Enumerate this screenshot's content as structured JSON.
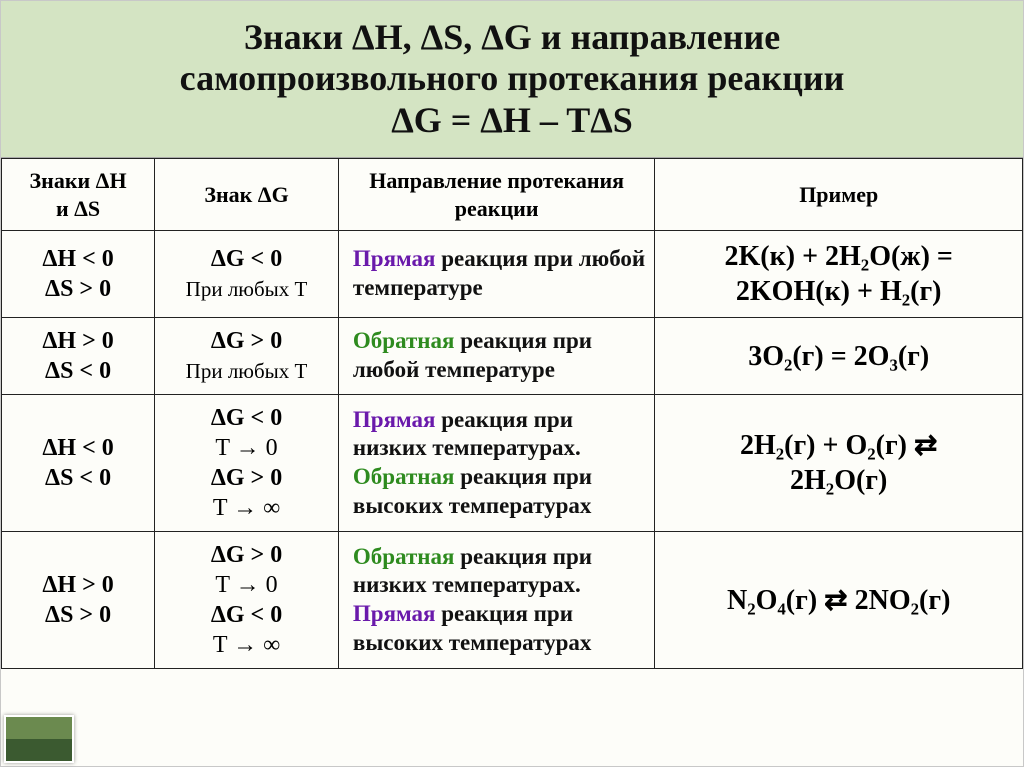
{
  "title": {
    "line1": "Знаки ΔH, ΔS, ΔG и направление",
    "line2": "самопроизвольного протекания реакции",
    "line3": "ΔG = ΔH – TΔS"
  },
  "headers": {
    "c1a": "Знаки ΔH",
    "c1b": "и ΔS",
    "c2": "Знак ΔG",
    "c3a": "Направление протекания",
    "c3b": "реакции",
    "c4": "Пример"
  },
  "rows": [
    {
      "signs_l1": "ΔH < 0",
      "signs_l2": "ΔS > 0",
      "g_l1": "ΔG < 0",
      "g_l2": "При любых T",
      "dir": [
        {
          "class": "forward",
          "text": "Прямая "
        },
        {
          "class": "plain",
          "text": "реакция при любой температуре"
        }
      ],
      "example_l1": "2K(к) + 2H₂O(ж) =",
      "example_l2": "2KOH(к) + H₂(г)"
    },
    {
      "signs_l1": "ΔH > 0",
      "signs_l2": "ΔS < 0",
      "g_l1": "ΔG > 0",
      "g_l2": "При любых T",
      "dir": [
        {
          "class": "reverse",
          "text": "Обратная "
        },
        {
          "class": "plain",
          "text": "реакция при любой температуре"
        }
      ],
      "example_l1": "3O₂(г)  = 2O₃(г)",
      "example_l2": ""
    },
    {
      "signs_l1": "ΔH < 0",
      "signs_l2": "ΔS < 0",
      "g_l1": "ΔG < 0",
      "g_l2": "T → 0",
      "g_l3": "ΔG > 0",
      "g_l4": "T → ∞",
      "dir": [
        {
          "class": "forward",
          "text": "Прямая "
        },
        {
          "class": "plain",
          "text": "реакция при низких температурах."
        },
        {
          "class": "br",
          "text": ""
        },
        {
          "class": "reverse",
          "text": "Обратная "
        },
        {
          "class": "plain",
          "text": "реакция при высоких температурах"
        }
      ],
      "example_l1": "2H₂(г) + O₂(г) ⇄",
      "example_l2": "2H₂O(г)"
    },
    {
      "signs_l1": "ΔH > 0",
      "signs_l2": "ΔS > 0",
      "g_l1": "ΔG > 0",
      "g_l2": "T → 0",
      "g_l3": "ΔG < 0",
      "g_l4": "T → ∞",
      "dir": [
        {
          "class": "reverse",
          "text": "Обратная "
        },
        {
          "class": "plain",
          "text": "реакция при низких температурах."
        },
        {
          "class": "br",
          "text": ""
        },
        {
          "class": "forward",
          "text": "Прямая "
        },
        {
          "class": "plain",
          "text": "реакция при высоких температурах"
        }
      ],
      "example_l1": "N₂O₄(г) ⇄ 2NO₂(г)",
      "example_l2": ""
    }
  ],
  "colors": {
    "title_bg": "#d4e4c3",
    "forward": "#6a1aab",
    "reverse": "#2e8b1f",
    "border": "#222222"
  }
}
